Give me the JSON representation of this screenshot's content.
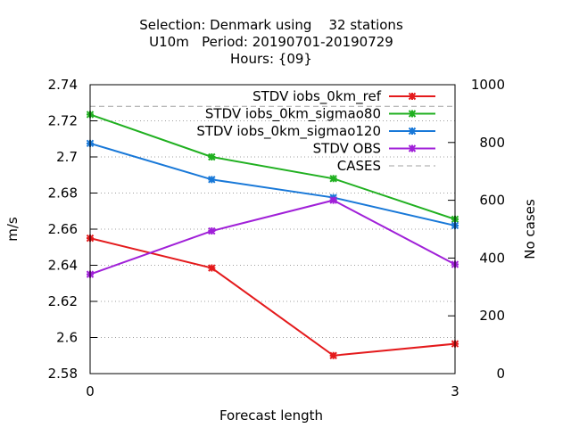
{
  "chart_data": {
    "type": "line",
    "title_lines": [
      "Selection: Denmark using    32 stations",
      "U10m   Period: 20190701-20190729",
      "Hours: {09}"
    ],
    "xlabel": "Forecast length",
    "ylabel": "m/s",
    "y2label": "No cases",
    "xlim": [
      0,
      3
    ],
    "ylim": [
      2.58,
      2.74
    ],
    "y2lim": [
      0,
      1000
    ],
    "xticks": [
      "0",
      "3"
    ],
    "yticks": [
      "2.58",
      "2.6",
      "2.62",
      "2.64",
      "2.66",
      "2.68",
      "2.7",
      "2.72",
      "2.74"
    ],
    "y2ticks": [
      "0",
      "200",
      "400",
      "600",
      "800",
      "1000"
    ],
    "grid": true,
    "legend_position": "top-right",
    "x": [
      0,
      1,
      2,
      3
    ],
    "series": [
      {
        "name": "STDV iobs_0km_ref",
        "color": "#e41a1c",
        "axis": "y",
        "values": [
          2.655,
          2.6385,
          2.59,
          2.5965
        ]
      },
      {
        "name": "STDV iobs_0km_sigmao80",
        "color": "#20b020",
        "axis": "y",
        "values": [
          2.7235,
          2.7,
          2.688,
          2.6655
        ]
      },
      {
        "name": "STDV iobs_0km_sigmao120",
        "color": "#1878d8",
        "axis": "y",
        "values": [
          2.7075,
          2.6875,
          2.6775,
          2.662
        ]
      },
      {
        "name": "STDV OBS",
        "color": "#a020d8",
        "axis": "y",
        "values": [
          2.635,
          2.659,
          2.676,
          2.6405
        ]
      },
      {
        "name": "CASES",
        "color": "#a0a0a0",
        "axis": "y2",
        "dashed": true,
        "values": [
          925,
          925,
          925,
          925
        ]
      }
    ]
  }
}
